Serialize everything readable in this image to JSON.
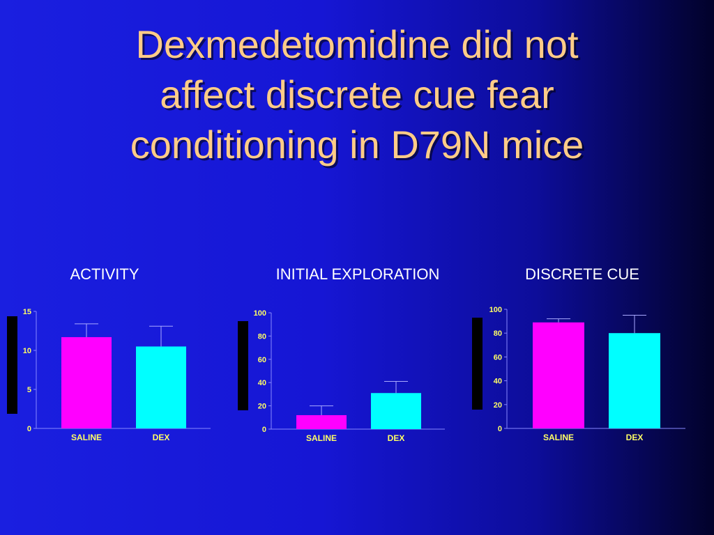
{
  "slide": {
    "title_lines": [
      "Dexmedetomidine did not",
      "affect discrete cue fear",
      "conditioning in D79N mice"
    ]
  },
  "colors": {
    "title": "#ffcc88",
    "tick_labels": "#ffff66",
    "saline_bar": "#ff00ff",
    "dex_bar": "#00ffff",
    "axis": "#8888ff",
    "error_bar": "#aaaaff"
  },
  "chart_data": [
    {
      "type": "bar",
      "title": "ACTIVITY",
      "categories": [
        "SALINE",
        "DEX"
      ],
      "values": [
        11.7,
        10.5
      ],
      "errors": [
        1.7,
        2.6
      ],
      "ylim": [
        0,
        15
      ],
      "yticks": [
        0,
        5,
        10,
        15
      ],
      "ylabel": "",
      "xlabel": ""
    },
    {
      "type": "bar",
      "title": "INITIAL EXPLORATION",
      "categories": [
        "SALINE",
        "DEX"
      ],
      "values": [
        12,
        31
      ],
      "errors": [
        8,
        10
      ],
      "ylim": [
        0,
        100
      ],
      "yticks": [
        0,
        20,
        40,
        60,
        80,
        100
      ],
      "ylabel": "",
      "xlabel": ""
    },
    {
      "type": "bar",
      "title": "DISCRETE CUE",
      "categories": [
        "SALINE",
        "DEX"
      ],
      "values": [
        89,
        80
      ],
      "errors": [
        3,
        15
      ],
      "ylim": [
        0,
        100
      ],
      "yticks": [
        0,
        20,
        40,
        60,
        80,
        100
      ],
      "ylabel": "",
      "xlabel": ""
    }
  ]
}
